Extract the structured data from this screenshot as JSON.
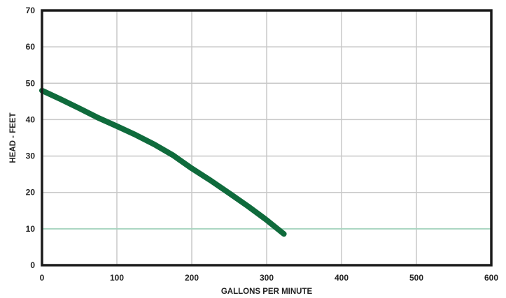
{
  "chart_data": {
    "type": "line",
    "title": "",
    "xlabel": "GALLONS PER MINUTE",
    "ylabel": "HEAD - FEET",
    "xlim": [
      0,
      600
    ],
    "ylim": [
      0,
      70
    ],
    "x_ticks": [
      "0",
      "100",
      "200",
      "300",
      "400",
      "500",
      "600"
    ],
    "y_ticks": [
      "0",
      "10",
      "20",
      "30",
      "40",
      "50",
      "60",
      "70"
    ],
    "grid": true,
    "legend": "none",
    "series": [
      {
        "color": "#0f6b3c",
        "points": [
          [
            0,
            48
          ],
          [
            25,
            45.6
          ],
          [
            50,
            43.1
          ],
          [
            75,
            40.5
          ],
          [
            100,
            38.2
          ],
          [
            125,
            35.8
          ],
          [
            150,
            33.2
          ],
          [
            175,
            30.2
          ],
          [
            200,
            26.6
          ],
          [
            225,
            23.3
          ],
          [
            250,
            19.8
          ],
          [
            275,
            16.2
          ],
          [
            300,
            12.4
          ],
          [
            323,
            8.6
          ]
        ]
      }
    ],
    "reference_line": {
      "y": 10,
      "color": "#a8d5c0"
    }
  }
}
